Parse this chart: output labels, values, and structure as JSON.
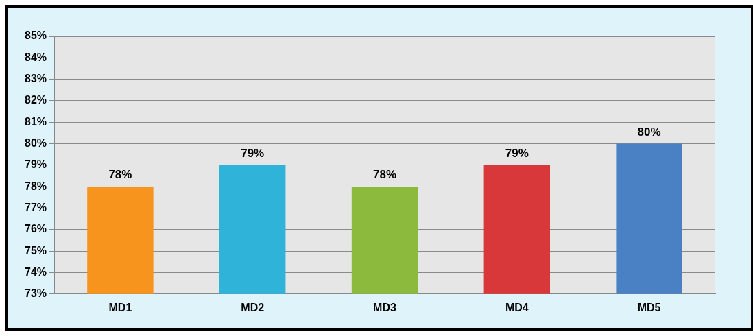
{
  "chart_data": {
    "type": "bar",
    "categories": [
      "MD1",
      "MD2",
      "MD3",
      "MD4",
      "MD5"
    ],
    "values": [
      78,
      79,
      78,
      79,
      80
    ],
    "colors": [
      "#f7941d",
      "#2fb3d8",
      "#8cba3c",
      "#d9383a",
      "#4a80c4"
    ],
    "value_labels": [
      "78%",
      "79%",
      "78%",
      "79%",
      "80%"
    ],
    "ylim": [
      73,
      85
    ],
    "yticks": [
      {
        "value": 73,
        "label": "73%"
      },
      {
        "value": 74,
        "label": "74%"
      },
      {
        "value": 75,
        "label": "75%"
      },
      {
        "value": 76,
        "label": "76%"
      },
      {
        "value": 77,
        "label": "77%"
      },
      {
        "value": 78,
        "label": "78%"
      },
      {
        "value": 79,
        "label": "79%"
      },
      {
        "value": 80,
        "label": "80%"
      },
      {
        "value": 81,
        "label": "81%"
      },
      {
        "value": 82,
        "label": "82%"
      },
      {
        "value": 83,
        "label": "83%"
      },
      {
        "value": 84,
        "label": "84%"
      },
      {
        "value": 85,
        "label": "85%"
      }
    ],
    "grid": "y",
    "legend": false
  }
}
